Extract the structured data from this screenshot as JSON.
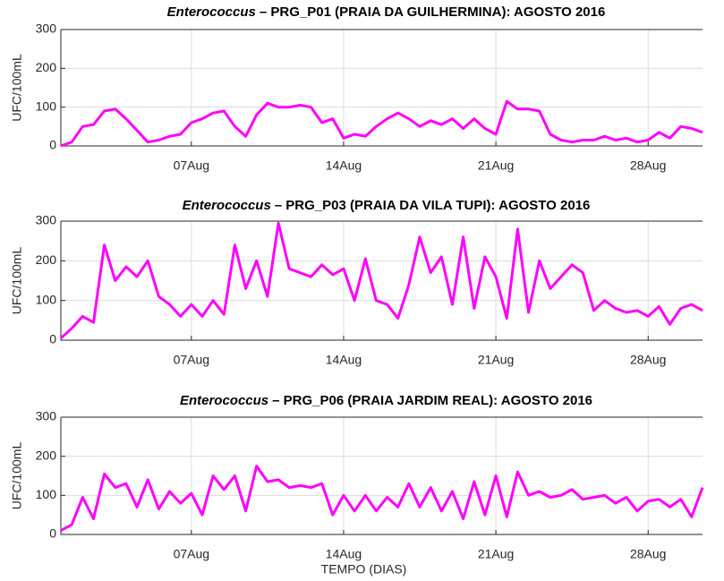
{
  "chart_data": [
    {
      "type": "line",
      "organism": "Enterococcus",
      "title": "– PRG_P01 (PRAIA DA GUILHERMINA): AGOSTO 2016",
      "ylabel": "UFC/100mL",
      "xlim": [
        1,
        30.5
      ],
      "xticks": [
        {
          "value": 7,
          "label": "07Aug"
        },
        {
          "value": 14,
          "label": "14Aug"
        },
        {
          "value": 21,
          "label": "21Aug"
        },
        {
          "value": 28,
          "label": "28Aug"
        }
      ],
      "ylim": [
        0,
        300
      ],
      "yticks": [
        0,
        100,
        200,
        300
      ],
      "grid": true,
      "x": [
        1,
        1.5,
        2,
        2.5,
        3,
        3.5,
        4,
        4.5,
        5,
        5.5,
        6,
        6.5,
        7,
        7.5,
        8,
        8.5,
        9,
        9.5,
        10,
        10.5,
        11,
        11.5,
        12,
        12.5,
        13,
        13.5,
        14,
        14.5,
        15,
        15.5,
        16,
        16.5,
        17,
        17.5,
        18,
        18.5,
        19,
        19.5,
        20,
        20.5,
        21,
        21.5,
        22,
        22.5,
        23,
        23.5,
        24,
        24.5,
        25,
        25.5,
        26,
        26.5,
        27,
        27.5,
        28,
        28.5,
        29,
        29.5,
        30,
        30.5
      ],
      "series": [
        {
          "name": "Enterococcus",
          "color": "#ff00ff",
          "values": [
            0,
            10,
            50,
            55,
            90,
            95,
            70,
            40,
            10,
            15,
            25,
            30,
            60,
            70,
            85,
            90,
            50,
            25,
            80,
            110,
            100,
            100,
            105,
            100,
            60,
            70,
            20,
            30,
            25,
            50,
            70,
            85,
            70,
            50,
            65,
            55,
            70,
            45,
            70,
            45,
            30,
            115,
            95,
            95,
            90,
            30,
            15,
            10,
            15,
            15,
            25,
            15,
            20,
            10,
            15,
            35,
            20,
            50,
            45,
            35
          ]
        }
      ]
    },
    {
      "type": "line",
      "organism": "Enterococcus",
      "title": "– PRG_P03 (PRAIA DA VILA TUPI): AGOSTO 2016",
      "ylabel": "UFC/100mL",
      "xlim": [
        1,
        30.5
      ],
      "xticks": [
        {
          "value": 7,
          "label": "07Aug"
        },
        {
          "value": 14,
          "label": "14Aug"
        },
        {
          "value": 21,
          "label": "21Aug"
        },
        {
          "value": 28,
          "label": "28Aug"
        }
      ],
      "ylim": [
        0,
        300
      ],
      "yticks": [
        0,
        100,
        200,
        300
      ],
      "grid": true,
      "x": [
        1,
        1.5,
        2,
        2.5,
        3,
        3.5,
        4,
        4.5,
        5,
        5.5,
        6,
        6.5,
        7,
        7.5,
        8,
        8.5,
        9,
        9.5,
        10,
        10.5,
        11,
        11.5,
        12,
        12.5,
        13,
        13.5,
        14,
        14.5,
        15,
        15.5,
        16,
        16.5,
        17,
        17.5,
        18,
        18.5,
        19,
        19.5,
        20,
        20.5,
        21,
        21.5,
        22,
        22.5,
        23,
        23.5,
        24,
        24.5,
        25,
        25.5,
        26,
        26.5,
        27,
        27.5,
        28,
        28.5,
        29,
        29.5,
        30,
        30.5
      ],
      "series": [
        {
          "name": "Enterococcus",
          "color": "#ff00ff",
          "values": [
            5,
            30,
            60,
            45,
            240,
            150,
            185,
            160,
            200,
            110,
            90,
            60,
            90,
            60,
            100,
            65,
            240,
            130,
            200,
            110,
            295,
            180,
            170,
            160,
            190,
            165,
            180,
            100,
            205,
            100,
            90,
            55,
            140,
            260,
            170,
            210,
            90,
            260,
            80,
            210,
            160,
            55,
            280,
            70,
            200,
            130,
            160,
            190,
            170,
            75,
            100,
            80,
            70,
            75,
            60,
            85,
            40,
            80,
            90,
            75
          ]
        }
      ]
    },
    {
      "type": "line",
      "organism": "Enterococcus",
      "title": "– PRG_P06 (PRAIA JARDIM REAL): AGOSTO 2016",
      "ylabel": "UFC/100mL",
      "xlabel": "TEMPO (DIAS)",
      "xlim": [
        1,
        30.5
      ],
      "xticks": [
        {
          "value": 7,
          "label": "07Aug"
        },
        {
          "value": 14,
          "label": "14Aug"
        },
        {
          "value": 21,
          "label": "21Aug"
        },
        {
          "value": 28,
          "label": "28Aug"
        }
      ],
      "ylim": [
        0,
        300
      ],
      "yticks": [
        0,
        100,
        200,
        300
      ],
      "grid": true,
      "x": [
        1,
        1.5,
        2,
        2.5,
        3,
        3.5,
        4,
        4.5,
        5,
        5.5,
        6,
        6.5,
        7,
        7.5,
        8,
        8.5,
        9,
        9.5,
        10,
        10.5,
        11,
        11.5,
        12,
        12.5,
        13,
        13.5,
        14,
        14.5,
        15,
        15.5,
        16,
        16.5,
        17,
        17.5,
        18,
        18.5,
        19,
        19.5,
        20,
        20.5,
        21,
        21.5,
        22,
        22.5,
        23,
        23.5,
        24,
        24.5,
        25,
        25.5,
        26,
        26.5,
        27,
        27.5,
        28,
        28.5,
        29,
        29.5,
        30,
        30.5
      ],
      "series": [
        {
          "name": "Enterococcus",
          "color": "#ff00ff",
          "values": [
            10,
            25,
            95,
            40,
            155,
            120,
            130,
            70,
            140,
            65,
            110,
            80,
            105,
            50,
            150,
            115,
            150,
            60,
            175,
            135,
            140,
            120,
            125,
            120,
            130,
            50,
            100,
            60,
            100,
            60,
            95,
            70,
            130,
            70,
            120,
            60,
            110,
            40,
            135,
            50,
            150,
            45,
            160,
            100,
            110,
            95,
            100,
            115,
            90,
            95,
            100,
            80,
            95,
            60,
            85,
            90,
            70,
            90,
            45,
            120
          ]
        }
      ]
    }
  ]
}
